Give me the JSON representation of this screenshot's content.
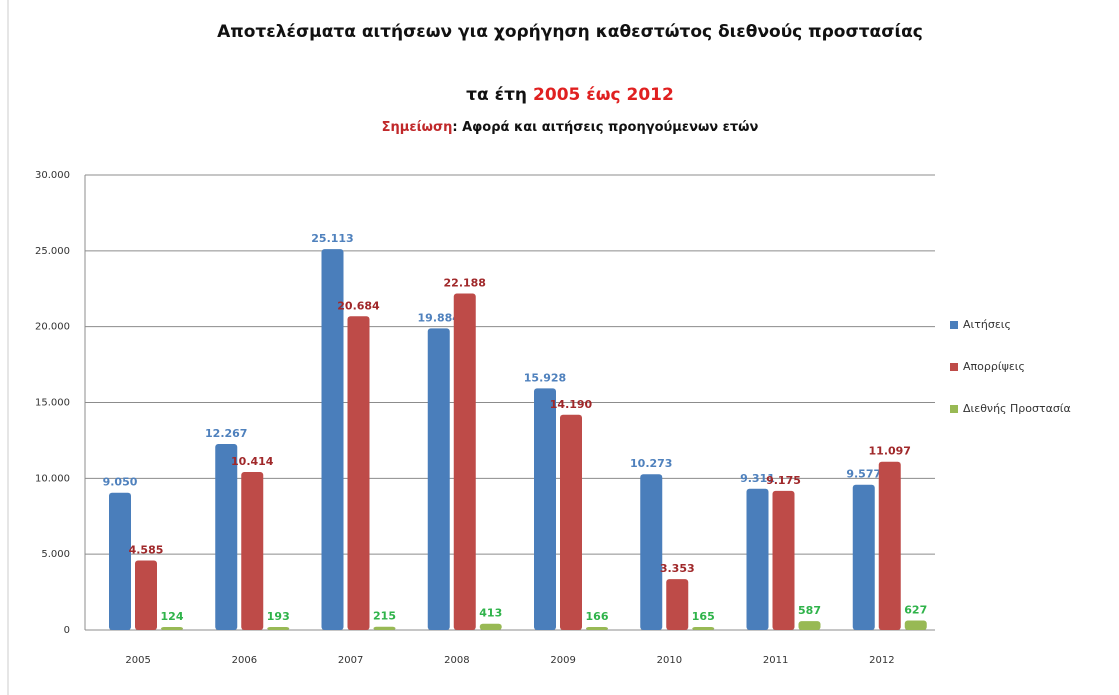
{
  "chart_data": {
    "type": "bar",
    "title": "Αποτελέσματα αιτήσεων για χορήγηση καθεστώτος διεθνούς προστασίας",
    "subtitle": {
      "text": "τα έτη",
      "highlight": "2005 έως 2012"
    },
    "note": {
      "label": "Σημείωση",
      "text": ": Αφορά και αιτήσεις προηγούμενων ετών"
    },
    "categories": [
      "2005",
      "2006",
      "2007",
      "2008",
      "2009",
      "2010",
      "2011",
      "2012"
    ],
    "series": [
      {
        "name": "Αιτήσεις",
        "color": "#4a7ebb",
        "label_color": "#4f81bd",
        "values": [
          9050,
          12267,
          25113,
          19884,
          15928,
          10273,
          9311,
          9577
        ],
        "value_labels": [
          "9.050",
          "12.267",
          "25.113",
          "19.884",
          "15.928",
          "10.273",
          "9.311",
          "9.577"
        ]
      },
      {
        "name": "Απορρίψεις",
        "color": "#be4b48",
        "label_color": "#a0282a",
        "values": [
          4585,
          10414,
          20684,
          22188,
          14190,
          3353,
          9175,
          11097
        ],
        "value_labels": [
          "4.585",
          "10.414",
          "20.684",
          "22.188",
          "14.190",
          "3.353",
          "9.175",
          "11.097"
        ]
      },
      {
        "name": "Διεθνής Προστασία",
        "color": "#98b954",
        "label_color": "#2fb34a",
        "values": [
          124,
          193,
          215,
          413,
          166,
          165,
          587,
          627
        ]
      }
    ],
    "ylim": [
      0,
      30000
    ],
    "yticks": [
      {
        "value": 0,
        "label": "0"
      },
      {
        "value": 5000,
        "label": "5.000"
      },
      {
        "value": 10000,
        "label": "10.000"
      },
      {
        "value": 15000,
        "label": "15.000"
      },
      {
        "value": 20000,
        "label": "20.000"
      },
      {
        "value": 25000,
        "label": "25.000"
      },
      {
        "value": 30000,
        "label": "30.000"
      }
    ],
    "grid": true,
    "legend": "right"
  }
}
